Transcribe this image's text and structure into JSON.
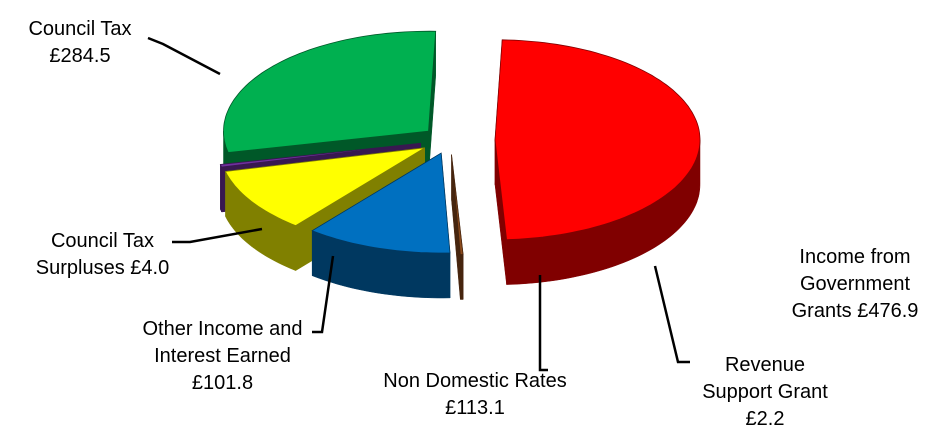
{
  "chart_data": {
    "type": "pie3d",
    "categories": [
      "Income from Government Grants",
      "Revenue Support Grant",
      "Non Domestic Rates",
      "Other Income and Interest Earned",
      "Council Tax Surpluses",
      "Council Tax"
    ],
    "values": [
      476.9,
      2.2,
      113.1,
      101.8,
      4.0,
      284.5
    ],
    "value_labels": [
      "£476.9",
      "£2.2",
      "£113.1",
      "£101.8",
      "£4.0",
      "£284.5"
    ],
    "colors": [
      "#ff0000",
      "#8b4a1c",
      "#0070c0",
      "#ffff00",
      "#7030a0",
      "#00b050"
    ]
  }
}
